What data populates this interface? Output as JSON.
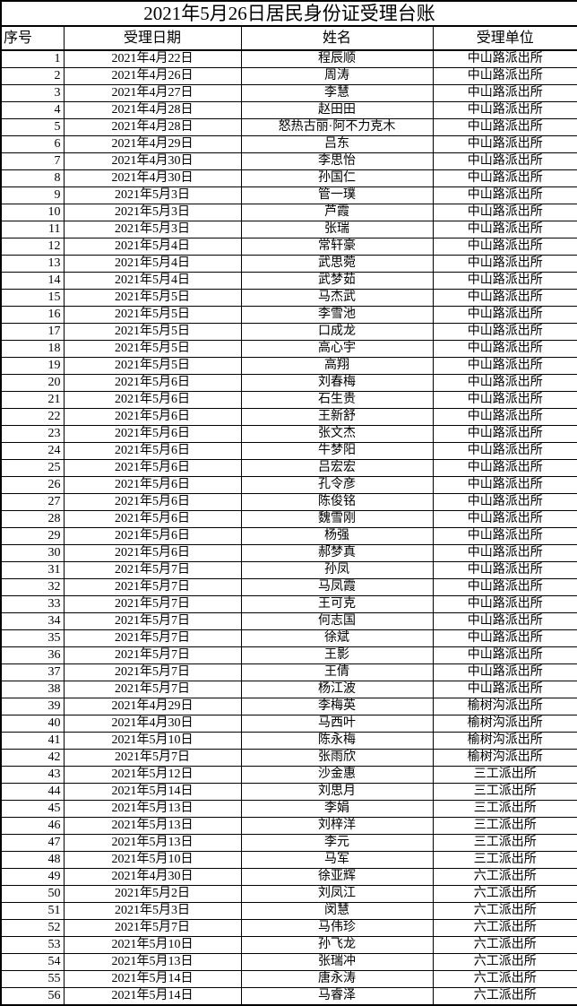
{
  "title": "2021年5月26日居民身份证受理台账",
  "table": {
    "headers": [
      "序号",
      "受理日期",
      "姓名",
      "受理单位"
    ],
    "rows": [
      {
        "no": "1",
        "date": "2021年4月22日",
        "name": "程辰顺",
        "unit": "中山路派出所"
      },
      {
        "no": "2",
        "date": "2021年4月26日",
        "name": "周涛",
        "unit": "中山路派出所"
      },
      {
        "no": "3",
        "date": "2021年4月27日",
        "name": "李慧",
        "unit": "中山路派出所"
      },
      {
        "no": "4",
        "date": "2021年4月28日",
        "name": "赵田田",
        "unit": "中山路派出所"
      },
      {
        "no": "5",
        "date": "2021年4月28日",
        "name": "怒热古丽·阿不力克木",
        "unit": "中山路派出所"
      },
      {
        "no": "6",
        "date": "2021年4月29日",
        "name": "吕东",
        "unit": "中山路派出所"
      },
      {
        "no": "7",
        "date": "2021年4月30日",
        "name": "李思怡",
        "unit": "中山路派出所"
      },
      {
        "no": "8",
        "date": "2021年4月30日",
        "name": "孙国仁",
        "unit": "中山路派出所"
      },
      {
        "no": "9",
        "date": "2021年5月3日",
        "name": "管一璞",
        "unit": "中山路派出所"
      },
      {
        "no": "10",
        "date": "2021年5月3日",
        "name": "芦霞",
        "unit": "中山路派出所"
      },
      {
        "no": "11",
        "date": "2021年5月3日",
        "name": "张瑞",
        "unit": "中山路派出所"
      },
      {
        "no": "12",
        "date": "2021年5月4日",
        "name": "常轩豪",
        "unit": "中山路派出所"
      },
      {
        "no": "13",
        "date": "2021年5月4日",
        "name": "武思菀",
        "unit": "中山路派出所"
      },
      {
        "no": "14",
        "date": "2021年5月4日",
        "name": "武梦茹",
        "unit": "中山路派出所"
      },
      {
        "no": "15",
        "date": "2021年5月5日",
        "name": "马杰武",
        "unit": "中山路派出所"
      },
      {
        "no": "16",
        "date": "2021年5月5日",
        "name": "李雪池",
        "unit": "中山路派出所"
      },
      {
        "no": "17",
        "date": "2021年5月5日",
        "name": "口成龙",
        "unit": "中山路派出所"
      },
      {
        "no": "18",
        "date": "2021年5月5日",
        "name": "高心宇",
        "unit": "中山路派出所"
      },
      {
        "no": "19",
        "date": "2021年5月5日",
        "name": "高翔",
        "unit": "中山路派出所"
      },
      {
        "no": "20",
        "date": "2021年5月6日",
        "name": "刘春梅",
        "unit": "中山路派出所"
      },
      {
        "no": "21",
        "date": "2021年5月6日",
        "name": "石生贵",
        "unit": "中山路派出所"
      },
      {
        "no": "22",
        "date": "2021年5月6日",
        "name": "王新舒",
        "unit": "中山路派出所"
      },
      {
        "no": "23",
        "date": "2021年5月6日",
        "name": "张文杰",
        "unit": "中山路派出所"
      },
      {
        "no": "24",
        "date": "2021年5月6日",
        "name": "牛梦阳",
        "unit": "中山路派出所"
      },
      {
        "no": "25",
        "date": "2021年5月6日",
        "name": "吕宏宏",
        "unit": "中山路派出所"
      },
      {
        "no": "26",
        "date": "2021年5月6日",
        "name": "孔令彦",
        "unit": "中山路派出所"
      },
      {
        "no": "27",
        "date": "2021年5月6日",
        "name": "陈俊铭",
        "unit": "中山路派出所"
      },
      {
        "no": "28",
        "date": "2021年5月6日",
        "name": "魏雪刚",
        "unit": "中山路派出所"
      },
      {
        "no": "29",
        "date": "2021年5月6日",
        "name": "杨强",
        "unit": "中山路派出所"
      },
      {
        "no": "30",
        "date": "2021年5月6日",
        "name": "郝梦真",
        "unit": "中山路派出所"
      },
      {
        "no": "31",
        "date": "2021年5月7日",
        "name": "孙凤",
        "unit": "中山路派出所"
      },
      {
        "no": "32",
        "date": "2021年5月7日",
        "name": "马凤霞",
        "unit": "中山路派出所"
      },
      {
        "no": "33",
        "date": "2021年5月7日",
        "name": "王可克",
        "unit": "中山路派出所"
      },
      {
        "no": "34",
        "date": "2021年5月7日",
        "name": "何志国",
        "unit": "中山路派出所"
      },
      {
        "no": "35",
        "date": "2021年5月7日",
        "name": "徐斌",
        "unit": "中山路派出所"
      },
      {
        "no": "36",
        "date": "2021年5月7日",
        "name": "王影",
        "unit": "中山路派出所"
      },
      {
        "no": "37",
        "date": "2021年5月7日",
        "name": "王倩",
        "unit": "中山路派出所"
      },
      {
        "no": "38",
        "date": "2021年5月7日",
        "name": "杨江波",
        "unit": "中山路派出所"
      },
      {
        "no": "39",
        "date": "2021年4月29日",
        "name": "李梅英",
        "unit": "榆树沟派出所"
      },
      {
        "no": "40",
        "date": "2021年4月30日",
        "name": "马西叶",
        "unit": "榆树沟派出所"
      },
      {
        "no": "41",
        "date": "2021年5月10日",
        "name": "陈永梅",
        "unit": "榆树沟派出所"
      },
      {
        "no": "42",
        "date": "2021年5月7日",
        "name": "张雨欣",
        "unit": "榆树沟派出所"
      },
      {
        "no": "43",
        "date": "2021年5月12日",
        "name": "沙金惠",
        "unit": "三工派出所"
      },
      {
        "no": "44",
        "date": "2021年5月14日",
        "name": "刘思月",
        "unit": "三工派出所"
      },
      {
        "no": "45",
        "date": "2021年5月13日",
        "name": "李娟",
        "unit": "三工派出所"
      },
      {
        "no": "46",
        "date": "2021年5月13日",
        "name": "刘梓洋",
        "unit": "三工派出所"
      },
      {
        "no": "47",
        "date": "2021年5月13日",
        "name": "李元",
        "unit": "三工派出所"
      },
      {
        "no": "48",
        "date": "2021年5月10日",
        "name": "马军",
        "unit": "三工派出所"
      },
      {
        "no": "49",
        "date": "2021年4月30日",
        "name": "徐亚辉",
        "unit": "六工派出所"
      },
      {
        "no": "50",
        "date": "2021年5月2日",
        "name": "刘凤江",
        "unit": "六工派出所"
      },
      {
        "no": "51",
        "date": "2021年5月3日",
        "name": "闵慧",
        "unit": "六工派出所"
      },
      {
        "no": "52",
        "date": "2021年5月7日",
        "name": "马伟珍",
        "unit": "六工派出所"
      },
      {
        "no": "53",
        "date": "2021年5月10日",
        "name": "孙飞龙",
        "unit": "六工派出所"
      },
      {
        "no": "54",
        "date": "2021年5月13日",
        "name": "张瑞冲",
        "unit": "六工派出所"
      },
      {
        "no": "55",
        "date": "2021年5月14日",
        "name": "唐永涛",
        "unit": "六工派出所"
      },
      {
        "no": "56",
        "date": "2021年5月14日",
        "name": "马睿泽",
        "unit": "六工派出所"
      }
    ]
  }
}
